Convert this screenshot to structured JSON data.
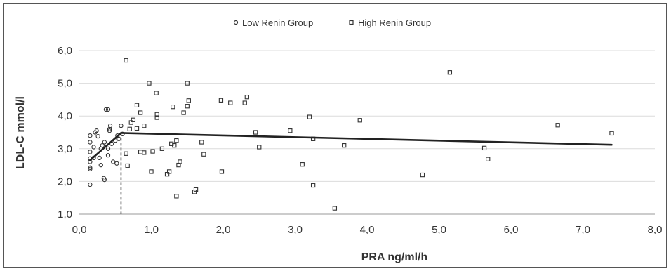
{
  "chart_data": {
    "type": "scatter",
    "title": "",
    "xlabel": "PRA ng/ml/h",
    "ylabel": "LDL-C mmol/l",
    "xlim": [
      0,
      8
    ],
    "ylim": [
      1,
      6
    ],
    "x_ticks": [
      "0,0",
      "1,0",
      "2,0",
      "3,0",
      "4,0",
      "5,0",
      "6,0",
      "7,0",
      "8,0"
    ],
    "y_ticks": [
      "1,0",
      "2,0",
      "3,0",
      "4,0",
      "5,0",
      "6,0"
    ],
    "grid": {
      "horizontal": true,
      "vertical": false
    },
    "legend_position": "top-center",
    "series": [
      {
        "name": "Low Renin Group",
        "marker": "circle",
        "points": [
          [
            0.15,
            1.9
          ],
          [
            0.15,
            2.38
          ],
          [
            0.15,
            2.42
          ],
          [
            0.15,
            2.6
          ],
          [
            0.15,
            2.7
          ],
          [
            0.15,
            2.9
          ],
          [
            0.15,
            3.2
          ],
          [
            0.15,
            3.4
          ],
          [
            0.2,
            2.72
          ],
          [
            0.2,
            3.05
          ],
          [
            0.22,
            3.5
          ],
          [
            0.24,
            3.55
          ],
          [
            0.26,
            3.38
          ],
          [
            0.28,
            2.72
          ],
          [
            0.3,
            2.5
          ],
          [
            0.3,
            3.0
          ],
          [
            0.32,
            3.1
          ],
          [
            0.34,
            2.1
          ],
          [
            0.35,
            2.05
          ],
          [
            0.35,
            3.2
          ],
          [
            0.37,
            4.2
          ],
          [
            0.4,
            4.2
          ],
          [
            0.4,
            2.8
          ],
          [
            0.4,
            3.0
          ],
          [
            0.42,
            3.55
          ],
          [
            0.42,
            3.6
          ],
          [
            0.43,
            3.7
          ],
          [
            0.45,
            3.15
          ],
          [
            0.47,
            2.6
          ],
          [
            0.5,
            3.25
          ],
          [
            0.52,
            2.55
          ],
          [
            0.53,
            3.4
          ],
          [
            0.55,
            3.3
          ],
          [
            0.58,
            3.7
          ],
          [
            0.6,
            3.45
          ]
        ]
      },
      {
        "name": "High Renin Group",
        "marker": "square",
        "points": [
          [
            0.65,
            5.7
          ],
          [
            0.65,
            2.85
          ],
          [
            0.67,
            2.48
          ],
          [
            0.7,
            3.6
          ],
          [
            0.72,
            3.8
          ],
          [
            0.75,
            3.88
          ],
          [
            0.8,
            3.62
          ],
          [
            0.8,
            4.33
          ],
          [
            0.85,
            4.1
          ],
          [
            0.85,
            2.9
          ],
          [
            0.9,
            3.7
          ],
          [
            0.9,
            2.88
          ],
          [
            0.97,
            5.0
          ],
          [
            1.0,
            2.3
          ],
          [
            1.02,
            2.92
          ],
          [
            1.07,
            4.7
          ],
          [
            1.08,
            3.95
          ],
          [
            1.08,
            4.05
          ],
          [
            1.15,
            3.0
          ],
          [
            1.22,
            2.22
          ],
          [
            1.25,
            2.3
          ],
          [
            1.28,
            3.15
          ],
          [
            1.3,
            4.28
          ],
          [
            1.32,
            3.1
          ],
          [
            1.35,
            1.55
          ],
          [
            1.35,
            3.25
          ],
          [
            1.38,
            2.5
          ],
          [
            1.4,
            2.6
          ],
          [
            1.45,
            4.1
          ],
          [
            1.5,
            4.3
          ],
          [
            1.5,
            5.0
          ],
          [
            1.52,
            4.47
          ],
          [
            1.6,
            1.68
          ],
          [
            1.62,
            1.75
          ],
          [
            1.7,
            3.2
          ],
          [
            1.73,
            2.83
          ],
          [
            1.97,
            4.48
          ],
          [
            1.98,
            2.3
          ],
          [
            2.1,
            4.4
          ],
          [
            2.3,
            4.4
          ],
          [
            2.33,
            4.58
          ],
          [
            2.45,
            3.5
          ],
          [
            2.5,
            3.05
          ],
          [
            2.93,
            3.55
          ],
          [
            3.1,
            2.52
          ],
          [
            3.2,
            3.97
          ],
          [
            3.25,
            3.3
          ],
          [
            3.25,
            1.88
          ],
          [
            3.55,
            1.18
          ],
          [
            3.68,
            3.1
          ],
          [
            3.9,
            3.87
          ],
          [
            4.77,
            2.2
          ],
          [
            5.15,
            5.33
          ],
          [
            5.63,
            3.02
          ],
          [
            5.68,
            2.68
          ],
          [
            6.65,
            3.72
          ],
          [
            7.4,
            3.47
          ]
        ]
      }
    ],
    "regression": {
      "segments": [
        {
          "x": [
            0.15,
            0.58
          ],
          "y": [
            2.65,
            3.48
          ]
        },
        {
          "x": [
            0.58,
            7.4
          ],
          "y": [
            3.48,
            3.12
          ]
        }
      ],
      "breakpoint": {
        "x": 0.58,
        "y": 3.48,
        "dashed_to_axis": true
      }
    }
  }
}
